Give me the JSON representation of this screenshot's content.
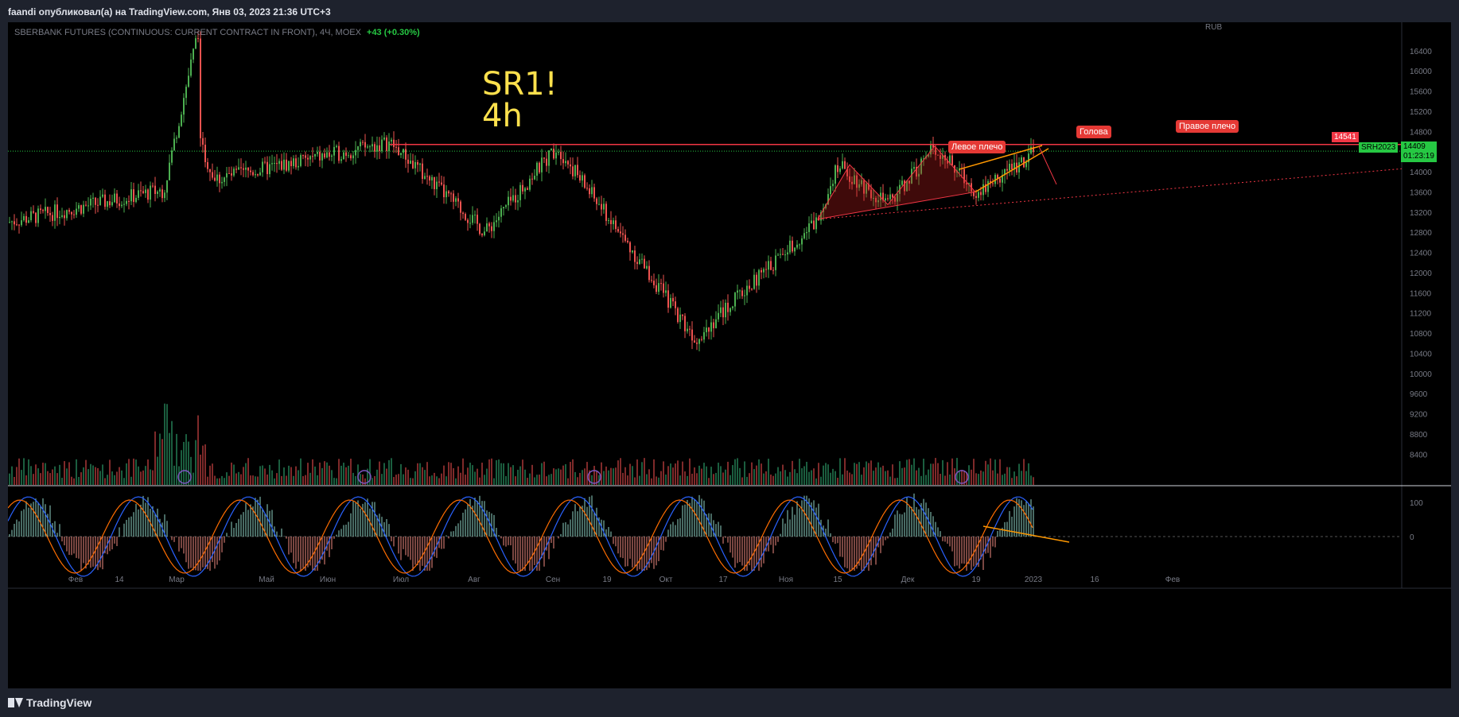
{
  "header": {
    "publisher_line": "faandi опубликовал(а) на TradingView.com, Янв 03, 2023 21:36 UTC+3"
  },
  "legend": {
    "symbol": "SBERBANK FUTURES (CONTINUOUS: CURRENT CONTRACT IN FRONT), 4Ч, MOEX",
    "change": "+43 (+0.30%)"
  },
  "annotation": {
    "line1": "SR1!",
    "line2": "4h"
  },
  "pattern_labels": {
    "left_shoulder": "Левое плечо",
    "head": "Голова",
    "right_shoulder": "Правое плечо"
  },
  "price_scale": {
    "currency": "RUB",
    "resistance_tag": "14541",
    "last_price_symbol": "SRH2023",
    "last_price": "14409",
    "countdown": "01:23:19"
  },
  "footer": {
    "brand": "TradingView"
  },
  "colors": {
    "up": "#26a69a",
    "up_bright": "#4caf50",
    "down": "#ef5350",
    "resistance": "#f23645",
    "trend": "#ff9800",
    "macd": "#2962ff",
    "signal": "#ff6d00",
    "label_bg": "#e53935",
    "annotation": "#ffe14d"
  },
  "chart_data": {
    "type": "candlestick",
    "y_ticks": [
      "16400",
      "16000",
      "15600",
      "15200",
      "14800",
      "14400",
      "14000",
      "13600",
      "13200",
      "12800",
      "12400",
      "12000",
      "11600",
      "11200",
      "10800",
      "10400",
      "10000",
      "9600",
      "9200",
      "8800",
      "8400"
    ],
    "ylim": [
      8200,
      16650
    ],
    "x_labels": [
      "Фев",
      "14",
      "Мар",
      "Май",
      "Июн",
      "Июл",
      "Авг",
      "Сен",
      "19",
      "Окт",
      "17",
      "Ноя",
      "15",
      "Дек",
      "19",
      "2023",
      "16",
      "Фев"
    ],
    "oscillator_ticks": [
      "100",
      "0"
    ],
    "resistance_level": 14541,
    "trend_path": [
      {
        "x": "start",
        "y": 13000
      },
      {
        "x": "Июл",
        "y": 14580
      },
      {
        "x": "Авг",
        "y": 12800
      },
      {
        "x": "Сен",
        "y": 14500
      },
      {
        "x": "Окт",
        "y": 10700
      },
      {
        "x": "Ноя",
        "y": 13050
      },
      {
        "x": "15",
        "y": 14150
      },
      {
        "x": "Дек",
        "y": 13350
      },
      {
        "x": "Дек+",
        "y": 14500
      },
      {
        "x": "19",
        "y": 13600
      },
      {
        "x": "2023",
        "y": 14409
      }
    ]
  }
}
